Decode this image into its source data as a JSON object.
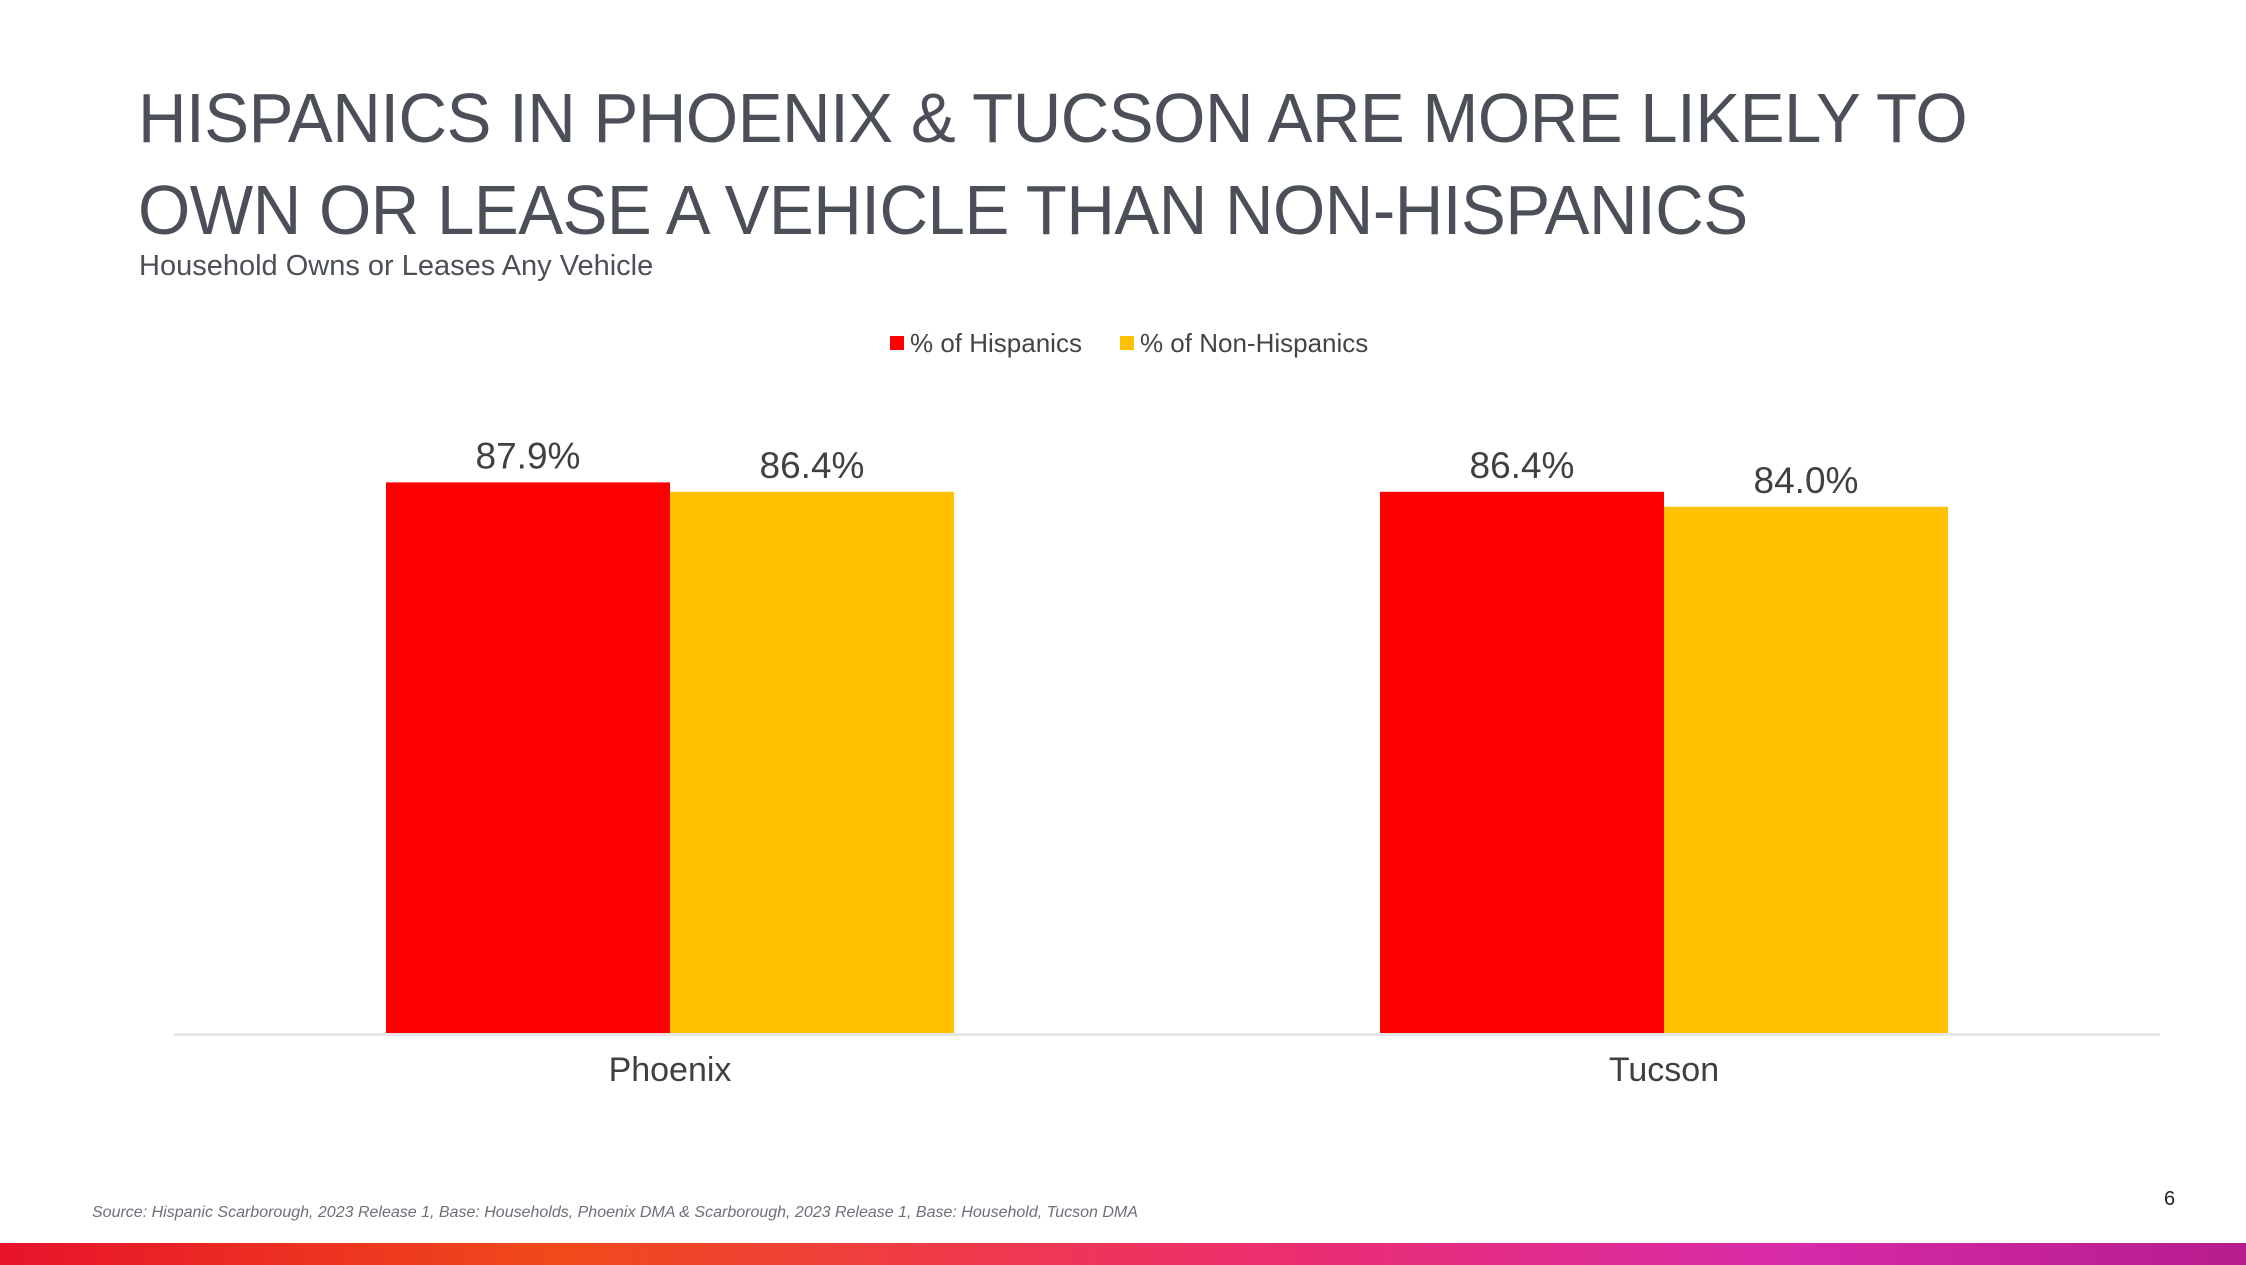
{
  "slide": {
    "title": "HISPANICS IN PHOENIX & TUCSON ARE MORE LIKELY TO OWN OR LEASE A VEHICLE THAN NON-HISPANICS",
    "subtitle": "Household Owns or Leases Any Vehicle",
    "source": "Source: Hispanic Scarborough, 2023 Release 1, Base: Households, Phoenix DMA & Scarborough, 2023 Release 1, Base: Household, Tucson DMA",
    "page_number": "6"
  },
  "legend": [
    {
      "label": "% of Hispanics",
      "color": "#ff0000"
    },
    {
      "label": "% of Non-Hispanics",
      "color": "#ffc000"
    }
  ],
  "chart_data": {
    "type": "bar",
    "title": "Household Owns or Leases Any Vehicle",
    "categories": [
      "Phoenix",
      "Tucson"
    ],
    "series": [
      {
        "name": "% of Hispanics",
        "values": [
          87.9,
          86.4
        ],
        "labels": [
          "87.9%",
          "86.4%"
        ],
        "color": "#ff0000"
      },
      {
        "name": "% of Non-Hispanics",
        "values": [
          86.4,
          84.0
        ],
        "labels": [
          "86.4%",
          "84.0%"
        ],
        "color": "#ffc000"
      }
    ],
    "xlabel": "",
    "ylabel": "",
    "ylim": [
      0,
      100
    ],
    "grid": false,
    "legend_position": "top-center"
  }
}
